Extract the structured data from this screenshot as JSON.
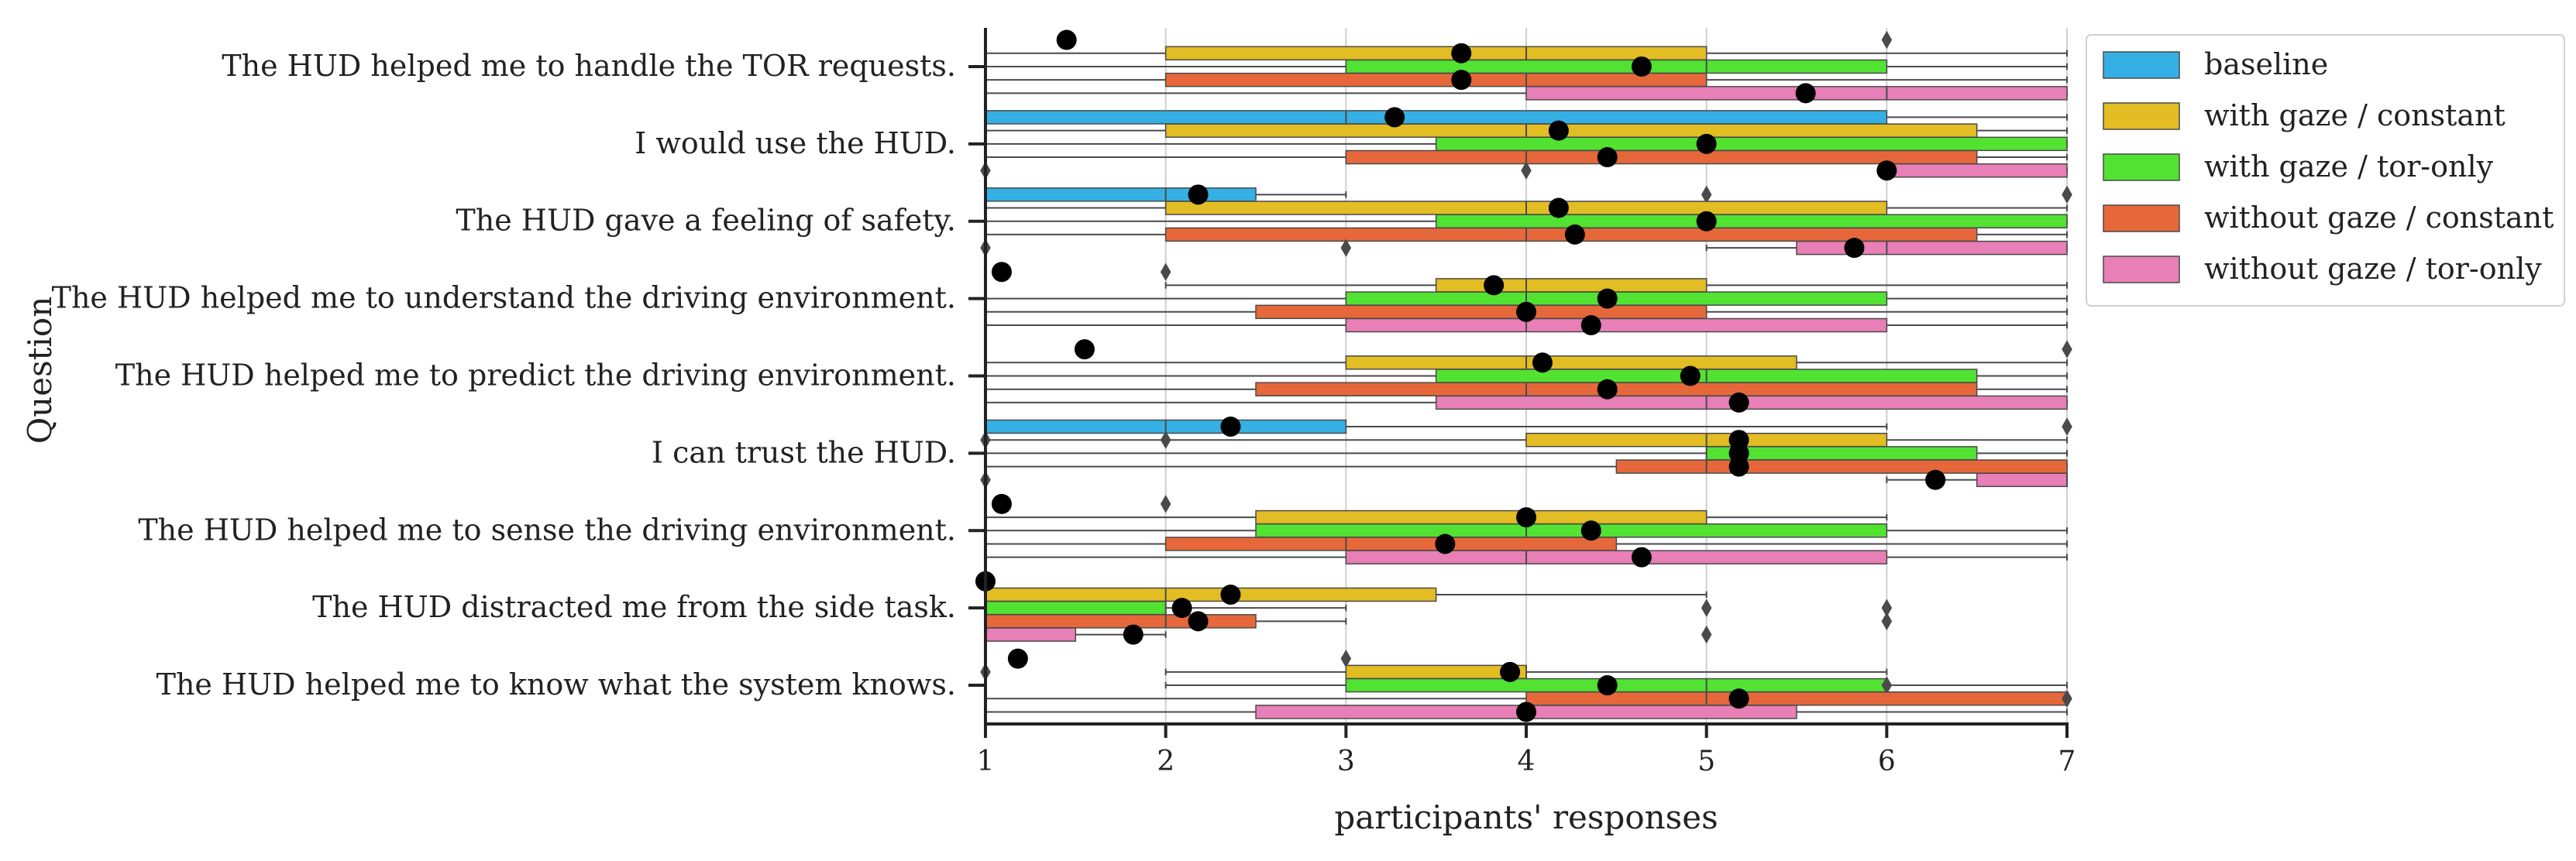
{
  "chart_data": {
    "type": "boxplot-horizontal",
    "xlabel": "participants' responses",
    "ylabel": "Question",
    "xlim": [
      1,
      7
    ],
    "xticks": [
      "1",
      "2",
      "3",
      "4",
      "5",
      "6",
      "7"
    ],
    "grid": "vertical",
    "legend_position": "top-right outside",
    "series": [
      {
        "name": "baseline",
        "color": "#35b0e4"
      },
      {
        "name": "with gaze / constant",
        "color": "#e2bd24"
      },
      {
        "name": "with gaze / tor-only",
        "color": "#52e232"
      },
      {
        "name": "without gaze / constant",
        "color": "#e6683a"
      },
      {
        "name": "without gaze / tor-only",
        "color": "#e87fb6"
      }
    ],
    "questions": [
      {
        "label": "The HUD helped me to handle the TOR requests.",
        "boxes": [
          {
            "q1": 1,
            "med": 1,
            "q3": 1,
            "wlo": 1,
            "whi": 1,
            "mean": 1.45,
            "out": [
              6
            ]
          },
          {
            "q1": 2,
            "med": 4,
            "q3": 5,
            "wlo": 1,
            "whi": 7,
            "mean": 3.64,
            "out": []
          },
          {
            "q1": 3,
            "med": 5,
            "q3": 6,
            "wlo": 1,
            "whi": 7,
            "mean": 4.64,
            "out": []
          },
          {
            "q1": 2,
            "med": 4,
            "q3": 5,
            "wlo": 1,
            "whi": 7,
            "mean": 3.64,
            "out": []
          },
          {
            "q1": 4,
            "med": 6,
            "q3": 7,
            "wlo": 1,
            "whi": 7,
            "mean": 5.55,
            "out": []
          }
        ]
      },
      {
        "label": "I would use the HUD.",
        "boxes": [
          {
            "q1": 1,
            "med": 3,
            "q3": 6,
            "wlo": 1,
            "whi": 7,
            "mean": 3.27,
            "out": []
          },
          {
            "q1": 2,
            "med": 4,
            "q3": 6.5,
            "wlo": 1,
            "whi": 7,
            "mean": 4.18,
            "out": []
          },
          {
            "q1": 3.5,
            "med": 5,
            "q3": 7,
            "wlo": 1,
            "whi": 7,
            "mean": 5,
            "out": []
          },
          {
            "q1": 3,
            "med": 4,
            "q3": 6.5,
            "wlo": 1,
            "whi": 7,
            "mean": 4.45,
            "out": []
          },
          {
            "q1": 6,
            "med": 6,
            "q3": 7,
            "wlo": 6,
            "whi": 7,
            "mean": 6,
            "out": [
              1,
              4
            ]
          }
        ]
      },
      {
        "label": "The HUD gave a feeling of safety.",
        "boxes": [
          {
            "q1": 1,
            "med": 2,
            "q3": 2.5,
            "wlo": 1,
            "whi": 3,
            "mean": 2.18,
            "out": [
              5,
              7
            ]
          },
          {
            "q1": 2,
            "med": 4,
            "q3": 6,
            "wlo": 1,
            "whi": 7,
            "mean": 4.18,
            "out": []
          },
          {
            "q1": 3.5,
            "med": 5,
            "q3": 7,
            "wlo": 1,
            "whi": 7,
            "mean": 5,
            "out": []
          },
          {
            "q1": 2,
            "med": 4,
            "q3": 6.5,
            "wlo": 1,
            "whi": 7,
            "mean": 4.27,
            "out": []
          },
          {
            "q1": 5.5,
            "med": 6,
            "q3": 7,
            "wlo": 5,
            "whi": 7,
            "mean": 5.82,
            "out": [
              1,
              3
            ]
          }
        ]
      },
      {
        "label": "The HUD helped me to understand the driving environment.",
        "boxes": [
          {
            "q1": 1,
            "med": 1,
            "q3": 1,
            "wlo": 1,
            "whi": 1,
            "mean": 1.09,
            "out": [
              2
            ]
          },
          {
            "q1": 3.5,
            "med": 4,
            "q3": 5,
            "wlo": 2,
            "whi": 7,
            "mean": 3.82,
            "out": []
          },
          {
            "q1": 3,
            "med": 4,
            "q3": 6,
            "wlo": 1,
            "whi": 7,
            "mean": 4.45,
            "out": []
          },
          {
            "q1": 2.5,
            "med": 4,
            "q3": 5,
            "wlo": 1,
            "whi": 7,
            "mean": 4,
            "out": []
          },
          {
            "q1": 3,
            "med": 4,
            "q3": 6,
            "wlo": 1,
            "whi": 7,
            "mean": 4.36,
            "out": []
          }
        ]
      },
      {
        "label": "The HUD helped me to predict the driving environment.",
        "boxes": [
          {
            "q1": 1,
            "med": 1,
            "q3": 1,
            "wlo": 1,
            "whi": 1,
            "mean": 1.55,
            "out": [
              7
            ]
          },
          {
            "q1": 3,
            "med": 4,
            "q3": 5.5,
            "wlo": 1,
            "whi": 7,
            "mean": 4.09,
            "out": []
          },
          {
            "q1": 3.5,
            "med": 5,
            "q3": 6.5,
            "wlo": 1,
            "whi": 7,
            "mean": 4.91,
            "out": []
          },
          {
            "q1": 2.5,
            "med": 4,
            "q3": 6.5,
            "wlo": 1,
            "whi": 7,
            "mean": 4.45,
            "out": []
          },
          {
            "q1": 3.5,
            "med": 5,
            "q3": 7,
            "wlo": 1,
            "whi": 7,
            "mean": 5.18,
            "out": []
          }
        ]
      },
      {
        "label": "I can trust the HUD.",
        "boxes": [
          {
            "q1": 1,
            "med": 2,
            "q3": 3,
            "wlo": 1,
            "whi": 6,
            "mean": 2.36,
            "out": [
              7
            ]
          },
          {
            "q1": 4,
            "med": 5,
            "q3": 6,
            "wlo": 1,
            "whi": 7,
            "mean": 5.18,
            "out": [
              1,
              2
            ]
          },
          {
            "q1": 5,
            "med": 5,
            "q3": 6.5,
            "wlo": 1,
            "whi": 7,
            "mean": 5.18,
            "out": []
          },
          {
            "q1": 4.5,
            "med": 5,
            "q3": 7,
            "wlo": 1,
            "whi": 7,
            "mean": 5.18,
            "out": []
          },
          {
            "q1": 6.5,
            "med": 7,
            "q3": 7,
            "wlo": 6,
            "whi": 7,
            "mean": 6.27,
            "out": [
              1
            ]
          }
        ]
      },
      {
        "label": "The HUD helped me to sense the driving environment.",
        "boxes": [
          {
            "q1": 1,
            "med": 1,
            "q3": 1,
            "wlo": 1,
            "whi": 1,
            "mean": 1.09,
            "out": [
              2
            ]
          },
          {
            "q1": 2.5,
            "med": 4,
            "q3": 5,
            "wlo": 1,
            "whi": 6,
            "mean": 4,
            "out": []
          },
          {
            "q1": 2.5,
            "med": 4,
            "q3": 6,
            "wlo": 1,
            "whi": 7,
            "mean": 4.36,
            "out": []
          },
          {
            "q1": 2,
            "med": 3,
            "q3": 4.5,
            "wlo": 1,
            "whi": 7,
            "mean": 3.55,
            "out": []
          },
          {
            "q1": 3,
            "med": 4,
            "q3": 6,
            "wlo": 1,
            "whi": 7,
            "mean": 4.64,
            "out": []
          }
        ]
      },
      {
        "label": "The HUD distracted me from the side task.",
        "boxes": [
          {
            "q1": 1,
            "med": 1,
            "q3": 1,
            "wlo": 1,
            "whi": 1,
            "mean": 1,
            "out": []
          },
          {
            "q1": 1,
            "med": 2,
            "q3": 3.5,
            "wlo": 1,
            "whi": 5,
            "mean": 2.36,
            "out": []
          },
          {
            "q1": 1,
            "med": 2,
            "q3": 2,
            "wlo": 1,
            "whi": 3,
            "mean": 2.09,
            "out": [
              5,
              6
            ]
          },
          {
            "q1": 1,
            "med": 2,
            "q3": 2.5,
            "wlo": 1,
            "whi": 3,
            "mean": 2.18,
            "out": [
              6
            ]
          },
          {
            "q1": 1,
            "med": 1,
            "q3": 1.5,
            "wlo": 1,
            "whi": 2,
            "mean": 1.82,
            "out": [
              5
            ]
          }
        ]
      },
      {
        "label": "The HUD helped me to know what the system knows.",
        "boxes": [
          {
            "q1": 1,
            "med": 1,
            "q3": 1,
            "wlo": 1,
            "whi": 1,
            "mean": 1.18,
            "out": [
              3
            ]
          },
          {
            "q1": 3,
            "med": 4,
            "q3": 4,
            "wlo": 2,
            "whi": 6,
            "mean": 3.91,
            "out": [
              1
            ]
          },
          {
            "q1": 3,
            "med": 5,
            "q3": 6,
            "wlo": 2,
            "whi": 7,
            "mean": 4.45,
            "out": [
              6
            ]
          },
          {
            "q1": 4,
            "med": 5,
            "q3": 7,
            "wlo": 1,
            "whi": 7,
            "mean": 5.18,
            "out": [
              7
            ]
          },
          {
            "q1": 2.5,
            "med": 4,
            "q3": 5.5,
            "wlo": 1,
            "whi": 7,
            "mean": 4,
            "out": []
          }
        ]
      }
    ]
  }
}
